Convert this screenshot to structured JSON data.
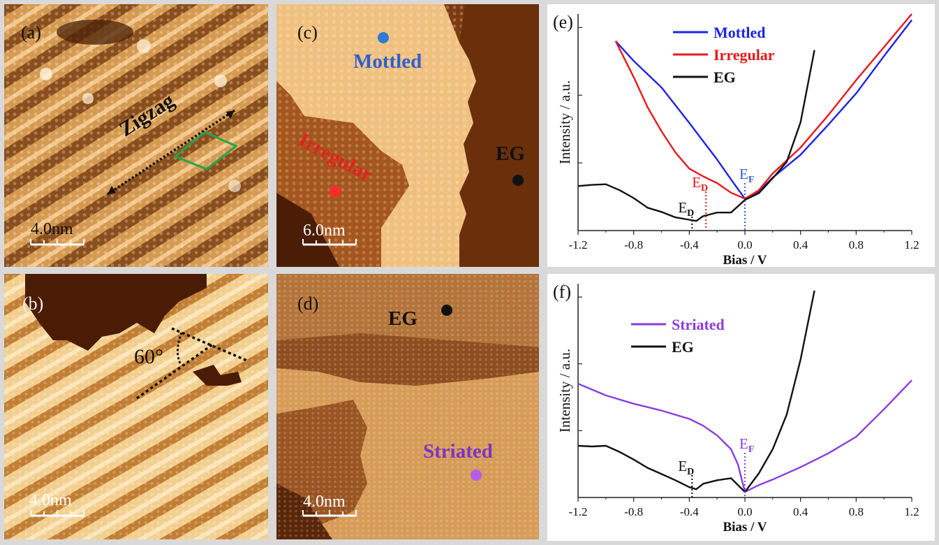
{
  "figure": {
    "panel_a": {
      "label": "(a)",
      "scalebar": "4.0nm",
      "annotation": "Zigzag",
      "colors": {
        "accent": "#22a64a"
      }
    },
    "panel_b": {
      "label": "(b)",
      "scalebar": "4.0nm",
      "angle": "60°"
    },
    "panel_c": {
      "label": "(c)",
      "scalebar": "6.0nm",
      "regions": [
        {
          "name": "Mottled",
          "color": "#2f5fd0",
          "dot": "#2f7ad3"
        },
        {
          "name": "Irregular",
          "color": "#e0231f",
          "dot": "#ff2a2a"
        },
        {
          "name": "EG",
          "color": "#111111",
          "dot": "#111111"
        }
      ]
    },
    "panel_d": {
      "label": "(d)",
      "scalebar": "4.0nm",
      "regions": [
        {
          "name": "EG",
          "color": "#111111",
          "dot": "#111111"
        },
        {
          "name": "Striated",
          "color": "#7b35c4",
          "dot": "#b35ee6"
        }
      ]
    }
  },
  "chart_data": [
    {
      "type": "line",
      "panel_label": "(e)",
      "xlabel": "Bias / V",
      "ylabel": "Intensity / a.u.",
      "xlim": [
        -1.2,
        1.2
      ],
      "xticks": [
        "-1.2",
        "-0.8",
        "-0.4",
        "0.0",
        "0.4",
        "0.8",
        "1.2"
      ],
      "legend_position": "top-center",
      "series": [
        {
          "name": "Mottled",
          "color": "#1f22e8",
          "x": [
            -0.93,
            -0.8,
            -0.6,
            -0.4,
            -0.2,
            -0.1,
            0.0,
            0.1,
            0.2,
            0.4,
            0.6,
            0.8,
            1.0,
            1.2
          ],
          "y": [
            31.5,
            28.2,
            23.8,
            17.9,
            11.8,
            8.5,
            5.3,
            6.5,
            8.8,
            12.6,
            17.6,
            22.8,
            29.0,
            35.0
          ]
        },
        {
          "name": "Irregular",
          "color": "#e81818",
          "x": [
            -0.93,
            -0.8,
            -0.7,
            -0.6,
            -0.5,
            -0.4,
            -0.3,
            -0.2,
            -0.1,
            0.0,
            0.1,
            0.2,
            0.4,
            0.6,
            0.8,
            1.0,
            1.2
          ],
          "y": [
            31.5,
            25.5,
            20.5,
            16.5,
            13.0,
            10.3,
            9.0,
            7.9,
            6.3,
            5.3,
            6.7,
            9.5,
            13.8,
            19.2,
            25.0,
            30.5,
            36.0
          ]
        },
        {
          "name": "EG",
          "color": "#111111",
          "x": [
            -1.2,
            -1.1,
            -1.0,
            -0.9,
            -0.8,
            -0.7,
            -0.6,
            -0.5,
            -0.4,
            -0.35,
            -0.3,
            -0.2,
            -0.1,
            0.0,
            0.1,
            0.2,
            0.3,
            0.4,
            0.5
          ],
          "y": [
            7.4,
            7.6,
            7.7,
            6.7,
            5.4,
            3.8,
            3.1,
            2.2,
            1.8,
            1.6,
            2.4,
            3.0,
            3.0,
            5.1,
            6.2,
            8.7,
            11.4,
            18.0,
            30.0
          ]
        }
      ],
      "annotations": [
        {
          "text": "E",
          "sub": "D",
          "x": -0.38,
          "color": "#111111"
        },
        {
          "text": "E",
          "sub": "D",
          "x": -0.28,
          "color": "#e81818"
        },
        {
          "text": "E",
          "sub": "F",
          "x": 0.0,
          "color": "#2f5fd0"
        }
      ]
    },
    {
      "type": "line",
      "panel_label": "(f)",
      "xlabel": "Bias / V",
      "ylabel": "Intensity / a.u.",
      "xlim": [
        -1.2,
        1.2
      ],
      "xticks": [
        "-1.2",
        "-0.8",
        "-0.4",
        "0.0",
        "0.4",
        "0.8",
        "1.2"
      ],
      "legend_position": "top-center",
      "series": [
        {
          "name": "Striated",
          "color": "#8a3de0",
          "x": [
            -1.2,
            -1.0,
            -0.8,
            -0.6,
            -0.4,
            -0.3,
            -0.2,
            -0.1,
            -0.05,
            0.0,
            0.1,
            0.2,
            0.4,
            0.6,
            0.8,
            1.0,
            1.2
          ],
          "y": [
            16.5,
            14.8,
            13.6,
            12.6,
            11.4,
            10.4,
            9.0,
            7.0,
            4.8,
            0.8,
            1.8,
            2.6,
            4.4,
            6.4,
            8.8,
            12.8,
            17.0
          ]
        },
        {
          "name": "EG",
          "color": "#111111",
          "x": [
            -1.2,
            -1.1,
            -1.0,
            -0.9,
            -0.8,
            -0.7,
            -0.6,
            -0.5,
            -0.4,
            -0.35,
            -0.3,
            -0.2,
            -0.1,
            0.0,
            0.1,
            0.2,
            0.3,
            0.4,
            0.5
          ],
          "y": [
            7.5,
            7.4,
            7.5,
            6.6,
            5.5,
            4.3,
            3.4,
            2.5,
            1.5,
            1.2,
            2.0,
            2.5,
            2.8,
            0.8,
            3.5,
            7.0,
            12.0,
            20.0,
            30.0
          ]
        }
      ],
      "annotations": [
        {
          "text": "E",
          "sub": "D",
          "x": -0.38,
          "color": "#111111"
        },
        {
          "text": "E",
          "sub": "F",
          "x": 0.0,
          "color": "#8a3de0"
        }
      ]
    }
  ]
}
